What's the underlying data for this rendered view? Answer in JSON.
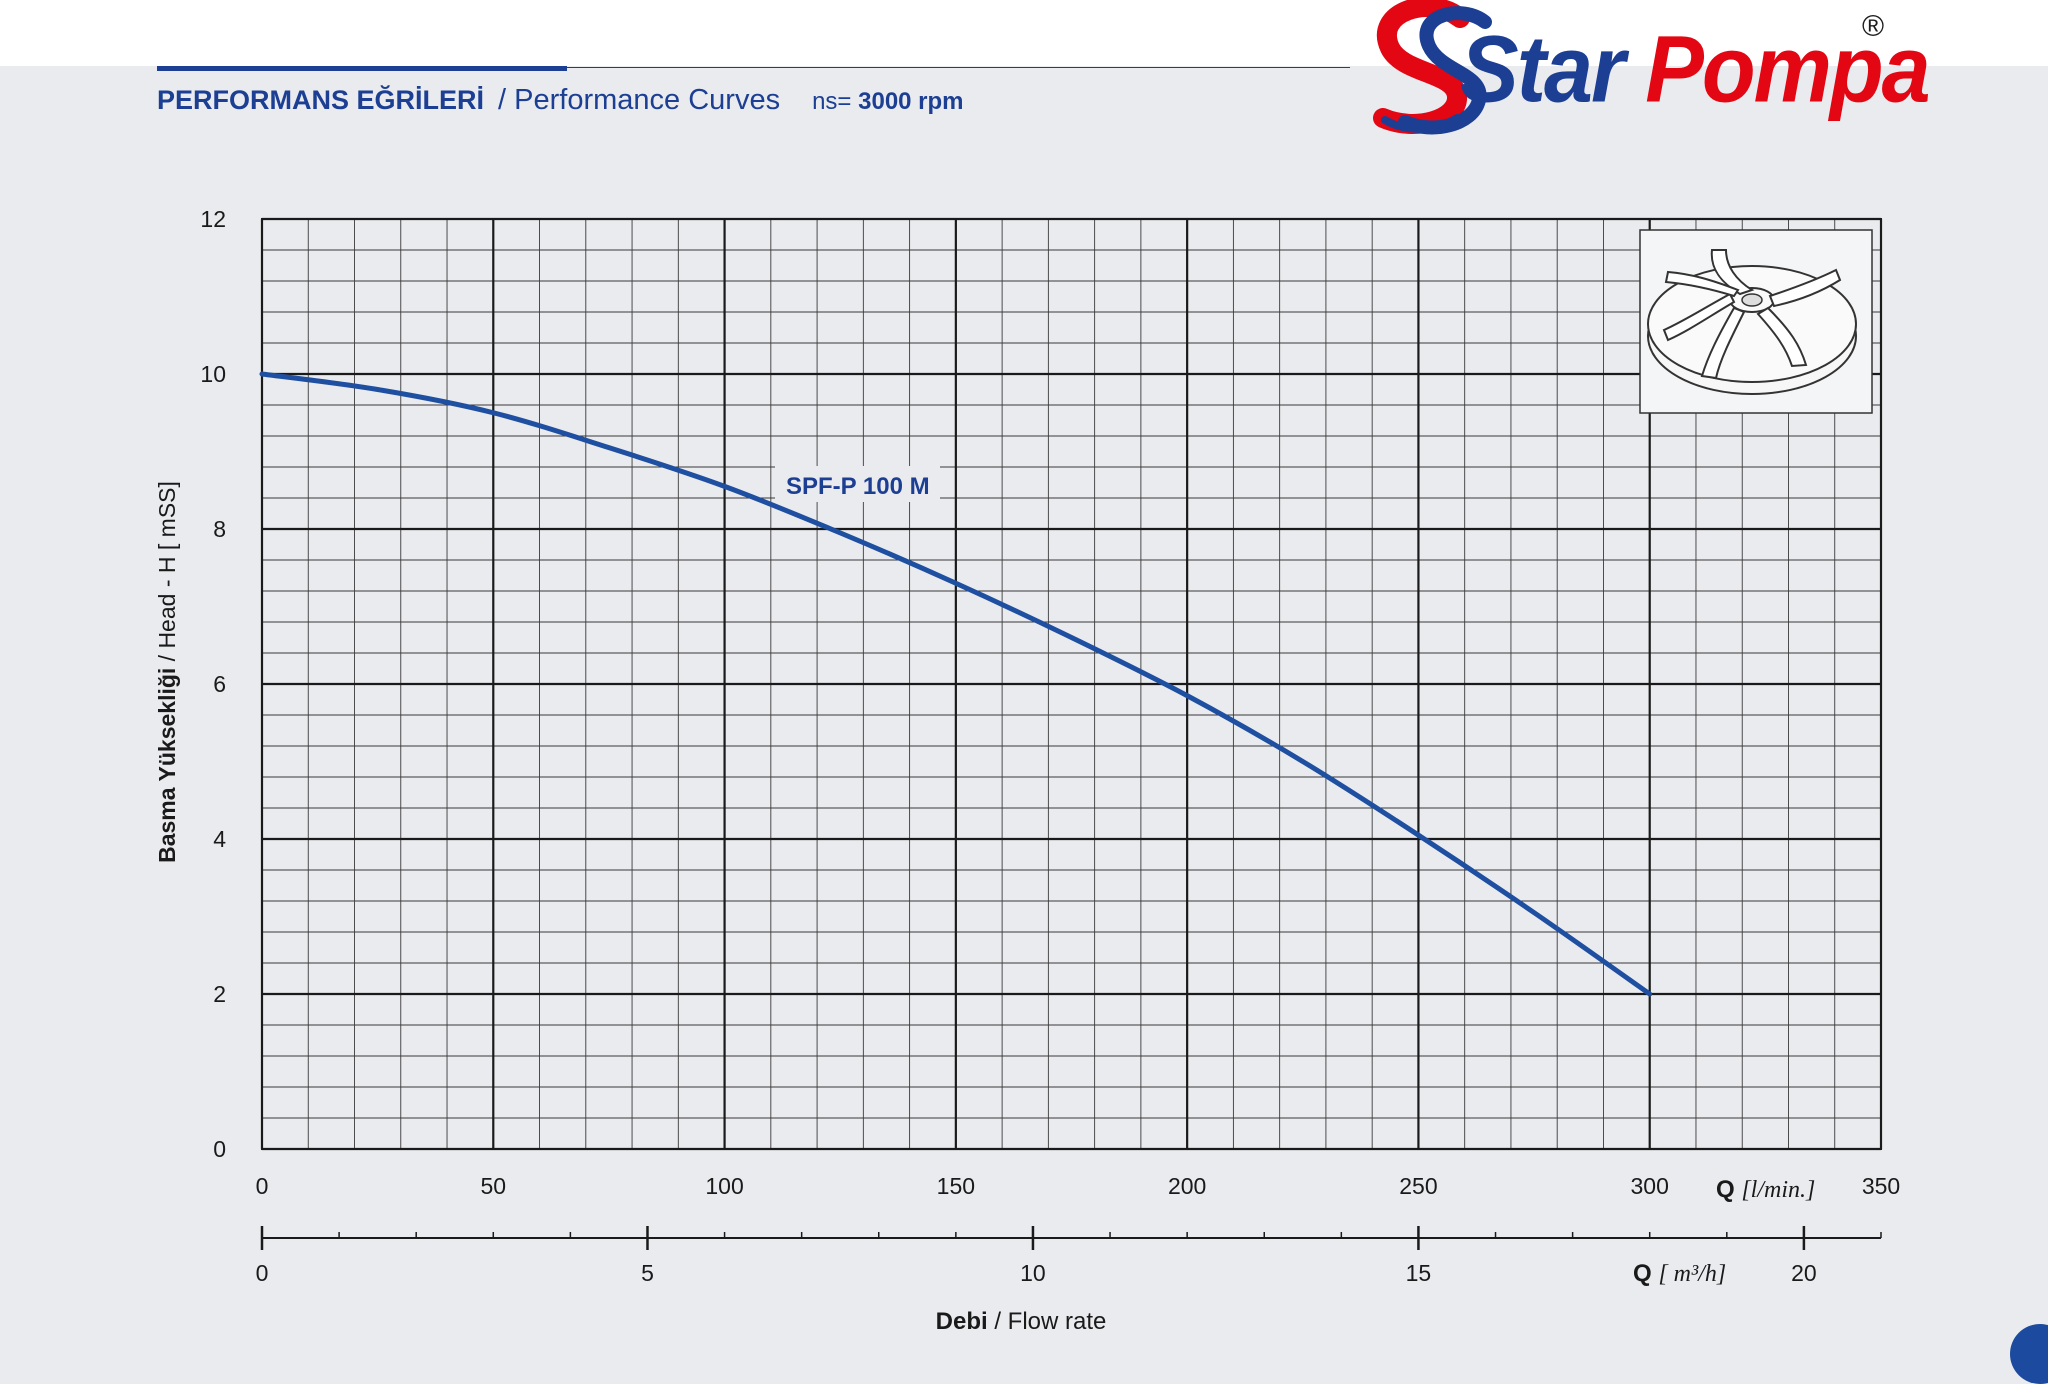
{
  "header": {
    "title_tr": "PERFORMANS EĞRİLERİ",
    "title_en": "/ Performance Curves",
    "speed_prefix": "ns=",
    "speed_value": "3000 rpm"
  },
  "brand": {
    "name_part1": "Star",
    "name_part2": "Pompa",
    "registered": "®",
    "colors": {
      "blue": "#1c3f94",
      "red": "#e30613"
    }
  },
  "chart_data": {
    "type": "line",
    "title": "PERFORMANS EĞRİLERİ / Performance Curves",
    "ylabel_tr": "Basma Yüksekliği",
    "ylabel_en": "/ Head - H [ mSS]",
    "xlabel_tr": "Debi",
    "xlabel_en": "/ Flow rate",
    "x_primary": {
      "unit_symbol": "Q",
      "unit": "[l/min.]",
      "range": [
        0,
        350
      ],
      "ticks": [
        "0",
        "50",
        "100",
        "150",
        "200",
        "250",
        "300",
        "350"
      ]
    },
    "x_secondary": {
      "unit_symbol": "Q",
      "unit": "[ m³/h]",
      "range": [
        0,
        21
      ],
      "ticks": [
        "0",
        "5",
        "10",
        "15",
        "20"
      ]
    },
    "y": {
      "range": [
        0,
        12
      ],
      "ticks": [
        "0",
        "2",
        "4",
        "6",
        "8",
        "10",
        "12"
      ]
    },
    "grid": true,
    "series": [
      {
        "name": "SPF-P 100 M",
        "color": "#1f4fa1",
        "x": [
          0,
          25,
          50,
          75,
          100,
          125,
          150,
          175,
          200,
          225,
          250,
          275,
          300
        ],
        "y": [
          10.0,
          9.8,
          9.5,
          9.05,
          8.55,
          7.95,
          7.3,
          6.6,
          5.85,
          5.0,
          4.05,
          3.05,
          2.0
        ]
      }
    ],
    "inset_image": "impeller-icon"
  }
}
